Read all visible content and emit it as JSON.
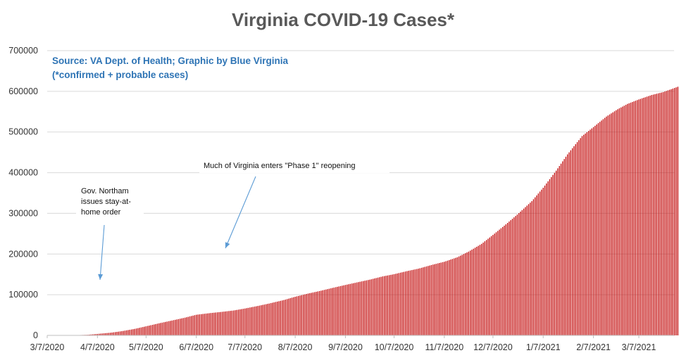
{
  "chart_data": {
    "type": "bar",
    "title": "Virginia COVID-19 Cases*",
    "subtitle_lines": [
      "Source: VA Dept. of Health; Graphic by Blue Virginia",
      "(*confirmed + probable cases)"
    ],
    "xlabel": "",
    "ylabel": "",
    "x_start": "2020-03-07",
    "x_end": "2021-04-02",
    "ylim": [
      0,
      700000
    ],
    "y_ticks": [
      0,
      100000,
      200000,
      300000,
      400000,
      500000,
      600000,
      700000
    ],
    "x_tick_labels": [
      "3/7/2020",
      "4/7/2020",
      "5/7/2020",
      "6/7/2020",
      "7/7/2020",
      "8/7/2020",
      "9/7/2020",
      "10/7/2020",
      "11/7/2020",
      "12/7/2020",
      "1/7/2021",
      "2/7/2021",
      "3/7/2021"
    ],
    "x_tick_dates": [
      "2020-03-07",
      "2020-04-07",
      "2020-05-07",
      "2020-06-07",
      "2020-07-07",
      "2020-08-07",
      "2020-09-07",
      "2020-10-07",
      "2020-11-07",
      "2020-12-07",
      "2021-01-07",
      "2021-02-07",
      "2021-03-07"
    ],
    "grid": true,
    "legend": "none",
    "series": [
      {
        "color": "#c00000",
        "points": [
          [
            "2020-03-07",
            0
          ],
          [
            "2020-03-21",
            150
          ],
          [
            "2020-04-01",
            1500
          ],
          [
            "2020-04-07",
            3600
          ],
          [
            "2020-04-15",
            6500
          ],
          [
            "2020-04-22",
            10300
          ],
          [
            "2020-04-30",
            16000
          ],
          [
            "2020-05-07",
            22300
          ],
          [
            "2020-05-15",
            29700
          ],
          [
            "2020-05-22",
            35700
          ],
          [
            "2020-05-31",
            43600
          ],
          [
            "2020-06-07",
            50700
          ],
          [
            "2020-06-15",
            54600
          ],
          [
            "2020-06-22",
            57500
          ],
          [
            "2020-06-30",
            61200
          ],
          [
            "2020-07-07",
            66100
          ],
          [
            "2020-07-15",
            72400
          ],
          [
            "2020-07-22",
            78400
          ],
          [
            "2020-07-31",
            86900
          ],
          [
            "2020-08-07",
            95000
          ],
          [
            "2020-08-15",
            102900
          ],
          [
            "2020-08-22",
            109000
          ],
          [
            "2020-08-31",
            117600
          ],
          [
            "2020-09-07",
            124000
          ],
          [
            "2020-09-15",
            131000
          ],
          [
            "2020-09-22",
            137000
          ],
          [
            "2020-09-30",
            145000
          ],
          [
            "2020-10-07",
            150400
          ],
          [
            "2020-10-15",
            158000
          ],
          [
            "2020-10-22",
            164000
          ],
          [
            "2020-10-31",
            174000
          ],
          [
            "2020-11-07",
            181000
          ],
          [
            "2020-11-15",
            192000
          ],
          [
            "2020-11-22",
            206000
          ],
          [
            "2020-11-30",
            225000
          ],
          [
            "2020-12-07",
            247000
          ],
          [
            "2020-12-15",
            273000
          ],
          [
            "2020-12-22",
            297000
          ],
          [
            "2020-12-31",
            330000
          ],
          [
            "2021-01-07",
            363000
          ],
          [
            "2021-01-15",
            405000
          ],
          [
            "2021-01-22",
            445000
          ],
          [
            "2021-01-31",
            490000
          ],
          [
            "2021-02-07",
            512000
          ],
          [
            "2021-02-15",
            538000
          ],
          [
            "2021-02-22",
            556000
          ],
          [
            "2021-02-28",
            569000
          ],
          [
            "2021-03-07",
            580000
          ],
          [
            "2021-03-15",
            591000
          ],
          [
            "2021-03-22",
            598000
          ],
          [
            "2021-04-02",
            614000
          ]
        ]
      }
    ],
    "annotations": [
      {
        "lines": [
          "Gov. Northam",
          "issues stay-at-",
          "home order"
        ],
        "date": "2020-03-30"
      },
      {
        "lines": [
          "Much of Virginia enters \"Phase 1\" reopening"
        ],
        "date": "2020-05-15"
      }
    ]
  }
}
